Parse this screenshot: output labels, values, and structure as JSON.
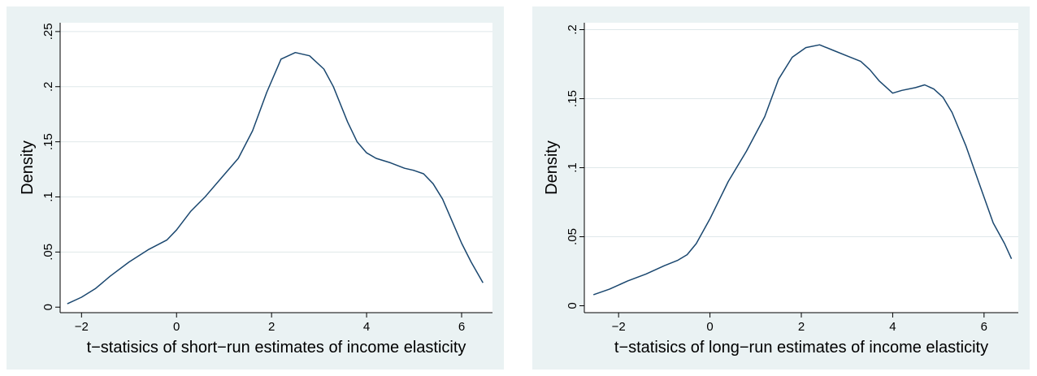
{
  "colors": {
    "panel_background": "#eaf2f3",
    "plot_background": "#ffffff",
    "grid": "#dfe8ea",
    "line": "#1a476f",
    "axis": "#000000"
  },
  "chart_data": [
    {
      "type": "line",
      "title": "",
      "xlabel": "t−statisics of short−run estimates of income elasticity",
      "ylabel": "Density",
      "xlim": [
        -2.45,
        6.65
      ],
      "ylim": [
        -0.005,
        0.258
      ],
      "xticks": [
        -2,
        0,
        2,
        4,
        6
      ],
      "xtick_labels": [
        "−2",
        "0",
        "2",
        "4",
        "6"
      ],
      "yticks": [
        0,
        0.05,
        0.1,
        0.15,
        0.2,
        0.25
      ],
      "ytick_labels": [
        "0",
        ".05",
        ".1",
        ".15",
        ".2",
        ".25"
      ],
      "grid": true,
      "legend": "none",
      "series": [
        {
          "x": [
            -2.3,
            -2.0,
            -1.7,
            -1.4,
            -1.0,
            -0.6,
            -0.2,
            0.0,
            0.3,
            0.6,
            1.0,
            1.3,
            1.6,
            1.9,
            2.2,
            2.5,
            2.8,
            3.1,
            3.3,
            3.6,
            3.8,
            4.0,
            4.2,
            4.5,
            4.8,
            5.0,
            5.2,
            5.4,
            5.6,
            5.8,
            6.0,
            6.2,
            6.45
          ],
          "y": [
            0.003,
            0.009,
            0.017,
            0.028,
            0.041,
            0.052,
            0.061,
            0.07,
            0.087,
            0.1,
            0.12,
            0.135,
            0.16,
            0.195,
            0.225,
            0.231,
            0.228,
            0.216,
            0.2,
            0.168,
            0.15,
            0.14,
            0.135,
            0.131,
            0.126,
            0.124,
            0.121,
            0.112,
            0.098,
            0.078,
            0.058,
            0.041,
            0.022
          ]
        }
      ]
    },
    {
      "type": "line",
      "title": "",
      "xlabel": "t−statisics of long−run estimates of income elasticity",
      "ylabel": "Density",
      "xlim": [
        -2.75,
        6.75
      ],
      "ylim": [
        -0.005,
        0.205
      ],
      "xticks": [
        -2,
        0,
        2,
        4,
        6
      ],
      "xtick_labels": [
        "−2",
        "0",
        "2",
        "4",
        "6"
      ],
      "yticks": [
        0,
        0.05,
        0.1,
        0.15,
        0.2
      ],
      "ytick_labels": [
        "0",
        ".05",
        ".1",
        ".15",
        ".2"
      ],
      "grid": true,
      "legend": "none",
      "series": [
        {
          "x": [
            -2.55,
            -2.2,
            -1.8,
            -1.4,
            -1.0,
            -0.7,
            -0.5,
            -0.3,
            0.0,
            0.4,
            0.8,
            1.2,
            1.5,
            1.8,
            2.1,
            2.4,
            2.7,
            3.0,
            3.3,
            3.5,
            3.7,
            3.9,
            4.0,
            4.2,
            4.5,
            4.7,
            4.9,
            5.1,
            5.3,
            5.6,
            5.9,
            6.2,
            6.45,
            6.6
          ],
          "y": [
            0.008,
            0.012,
            0.018,
            0.023,
            0.029,
            0.033,
            0.037,
            0.045,
            0.063,
            0.09,
            0.112,
            0.137,
            0.164,
            0.18,
            0.187,
            0.189,
            0.185,
            0.181,
            0.177,
            0.171,
            0.163,
            0.157,
            0.154,
            0.156,
            0.158,
            0.16,
            0.157,
            0.151,
            0.14,
            0.116,
            0.088,
            0.06,
            0.045,
            0.034
          ]
        }
      ]
    }
  ]
}
